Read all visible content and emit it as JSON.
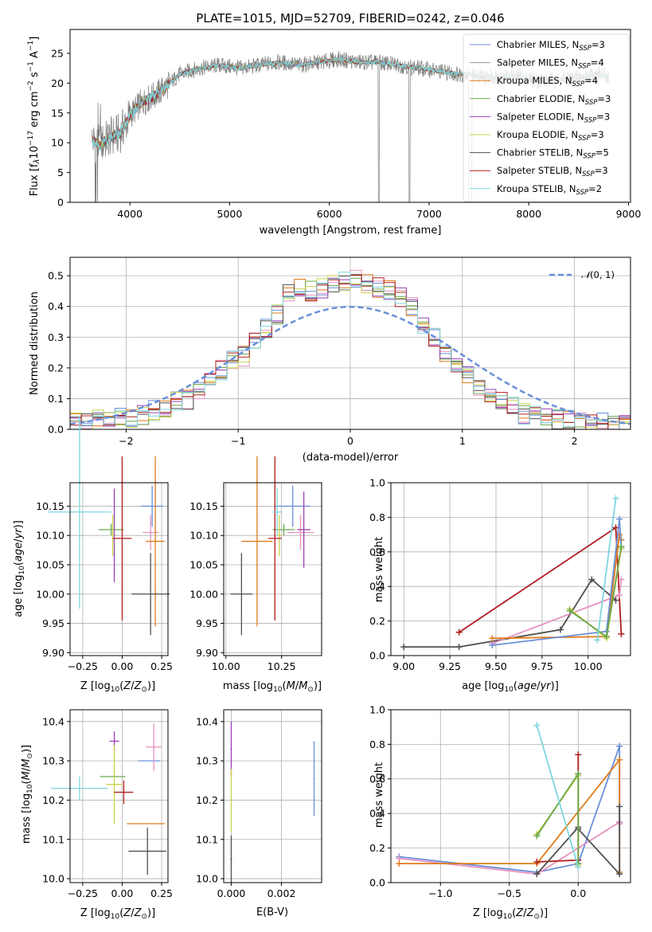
{
  "colors": {
    "Chabrier MILES": "#6a8fd8",
    "Salpeter MILES": "#9a9a9a",
    "Kroupa MILES": "#e07b1a",
    "Chabrier ELODIE": "#6aa84f",
    "Salpeter ELODIE": "#9b3fb5",
    "Kroupa ELODIE": "#c9d34a",
    "Chabrier STELIB": "#505050",
    "Salpeter STELIB": "#b01c1c",
    "Kroupa STELIB": "#7fd6de",
    "pink": "#e890c0",
    "green2": "#88c060",
    "normal": "#6a8fd8"
  },
  "chart_data": [
    {
      "id": "spectrum",
      "type": "line",
      "title": "PLATE=1015, MJD=52709, FIBERID=0242, z=0.046",
      "xlabel": "wavelength [Angstrom, rest frame]",
      "ylabel": "Flux [f_λ10^{-17} erg cm^{-2} s^{-1} A^{-1}]",
      "xlim": [
        3400,
        9020
      ],
      "ylim": [
        0,
        29
      ],
      "xticks": [
        4000,
        5000,
        6000,
        7000,
        8000,
        9000
      ],
      "yticks": [
        0,
        5,
        10,
        15,
        20,
        25
      ],
      "legend_position": "upper right",
      "legend": [
        {
          "model": "Chabrier MILES",
          "nssp": "3"
        },
        {
          "model": "Salpeter MILES",
          "nssp": "4"
        },
        {
          "model": "Kroupa MILES",
          "nssp": "4"
        },
        {
          "model": "Chabrier ELODIE",
          "nssp": "3"
        },
        {
          "model": "Salpeter ELODIE",
          "nssp": "3"
        },
        {
          "model": "Kroupa ELODIE",
          "nssp": "3"
        },
        {
          "model": "Chabrier STELIB",
          "nssp": "5"
        },
        {
          "model": "Salpeter STELIB",
          "nssp": "3"
        },
        {
          "model": "Kroupa STELIB",
          "nssp": "2"
        }
      ],
      "continuum": {
        "x": [
          3620,
          3700,
          3800,
          3900,
          4000,
          4100,
          4200,
          4300,
          4400,
          4500,
          4700,
          4900,
          5100,
          5300,
          5500,
          5700,
          5900,
          6100,
          6300,
          6500,
          6700,
          6900,
          7100,
          7300,
          7420,
          7500,
          7700,
          7900,
          8100,
          8300,
          8500,
          8700,
          8800
        ],
        "y": [
          10.5,
          9.5,
          11.0,
          11.5,
          14.5,
          16.5,
          17.5,
          18.5,
          20.0,
          21.5,
          22.5,
          23.0,
          22.5,
          23.0,
          23.5,
          23.0,
          23.5,
          24.0,
          23.5,
          23.5,
          23.0,
          22.5,
          22.0,
          21.5,
          21.5,
          21.0,
          21.0,
          21.0,
          20.5,
          20.5,
          21.0,
          21.5,
          21.0
        ]
      },
      "gaps": [
        [
          6490,
          6500
        ],
        [
          6800,
          6810
        ],
        [
          7400,
          7430
        ]
      ]
    },
    {
      "id": "residuals",
      "type": "histogram",
      "xlabel": "(data-model)/error",
      "ylabel": "Normed distribution",
      "xlim": [
        -2.5,
        2.5
      ],
      "ylim": [
        0,
        0.56
      ],
      "xticks": [
        -2,
        -1,
        0,
        1,
        2
      ],
      "yticks": [
        0.0,
        0.1,
        0.2,
        0.3,
        0.4,
        0.5
      ],
      "normal_label": "N(0,1)",
      "legend_position": "upper right",
      "bin_edges_start": -2.5,
      "bin_width": 0.1,
      "base_values": [
        0.02,
        0.02,
        0.03,
        0.03,
        0.04,
        0.04,
        0.05,
        0.06,
        0.07,
        0.09,
        0.1,
        0.13,
        0.15,
        0.19,
        0.22,
        0.24,
        0.28,
        0.33,
        0.37,
        0.44,
        0.46,
        0.45,
        0.46,
        0.47,
        0.48,
        0.49,
        0.47,
        0.46,
        0.45,
        0.43,
        0.4,
        0.34,
        0.3,
        0.24,
        0.21,
        0.18,
        0.14,
        0.11,
        0.09,
        0.07,
        0.05,
        0.04,
        0.04,
        0.03,
        0.03,
        0.02,
        0.02,
        0.02,
        0.01,
        0.01
      ]
    },
    {
      "id": "age_vs_Z",
      "type": "errorbar",
      "xlabel": "Z [log10(Z/Z⊙)]",
      "ylabel": "age [log10(age/yr)]",
      "xlim": [
        -0.33,
        0.29
      ],
      "ylim": [
        9.895,
        10.19
      ],
      "xticks": [
        -0.25,
        0.0,
        0.25
      ],
      "xticklabels": [
        "−0.25",
        "0.00",
        "0.25"
      ],
      "yticks": [
        9.9,
        9.95,
        10.0,
        10.05,
        10.1,
        10.15
      ],
      "points": [
        {
          "c": "Chabrier MILES",
          "x": 0.19,
          "xerr": 0.07,
          "y": 10.15,
          "yerr": 0.035
        },
        {
          "c": "pink",
          "x": 0.18,
          "xerr": 0.05,
          "y": 10.105,
          "yerr": 0.03
        },
        {
          "c": "Kroupa MILES",
          "x": 0.21,
          "xerr": 0.06,
          "y": 10.09,
          "yerr": 0.145
        },
        {
          "c": "Chabrier ELODIE",
          "x": -0.07,
          "xerr": 0.08,
          "y": 10.11,
          "yerr": 0.01
        },
        {
          "c": "Salpeter ELODIE",
          "x": -0.05,
          "xerr": 0.0,
          "y": 10.1,
          "yerr": 0.08
        },
        {
          "c": "Kroupa ELODIE",
          "x": -0.06,
          "xerr": 0.01,
          "y": 10.1,
          "yerr": 0.035
        },
        {
          "c": "Chabrier STELIB",
          "x": 0.18,
          "xerr": 0.12,
          "y": 10.0,
          "yerr": 0.07
        },
        {
          "c": "Salpeter STELIB",
          "x": 0.0,
          "xerr": 0.06,
          "y": 10.095,
          "yerr": 0.14
        },
        {
          "c": "Kroupa STELIB",
          "x": -0.27,
          "xerr": 0.2,
          "y": 10.14,
          "yerr": 0.165
        }
      ]
    },
    {
      "id": "age_vs_mass",
      "type": "errorbar",
      "xlabel": "mass [log10(M/M⊙)]",
      "ylabel": "",
      "xlim": [
        9.99,
        10.43
      ],
      "ylim": [
        9.895,
        10.19
      ],
      "xticks": [
        10.0,
        10.25
      ],
      "xticklabels": [
        "10.00",
        "10.25"
      ],
      "yticks": [
        9.9,
        9.95,
        10.0,
        10.05,
        10.1,
        10.15
      ],
      "points": [
        {
          "c": "Chabrier MILES",
          "x": 10.3,
          "xerr": 0.08,
          "y": 10.15,
          "yerr": 0.035
        },
        {
          "c": "pink",
          "x": 10.335,
          "xerr": 0.06,
          "y": 10.105,
          "yerr": 0.03
        },
        {
          "c": "Kroupa MILES",
          "x": 10.14,
          "xerr": 0.07,
          "y": 10.09,
          "yerr": 0.145
        },
        {
          "c": "Chabrier ELODIE",
          "x": 10.26,
          "xerr": 0.05,
          "y": 10.11,
          "yerr": 0.01
        },
        {
          "c": "Salpeter ELODIE",
          "x": 10.35,
          "xerr": 0.03,
          "y": 10.11,
          "yerr": 0.065
        },
        {
          "c": "Kroupa ELODIE",
          "x": 10.24,
          "xerr": 0.01,
          "y": 10.1,
          "yerr": 0.035
        },
        {
          "c": "Chabrier STELIB",
          "x": 10.07,
          "xerr": 0.05,
          "y": 10.0,
          "yerr": 0.07
        },
        {
          "c": "Salpeter STELIB",
          "x": 10.22,
          "xerr": 0.03,
          "y": 10.095,
          "yerr": 0.14
        },
        {
          "c": "Kroupa STELIB",
          "x": 10.23,
          "xerr": 0.02,
          "y": 10.14,
          "yerr": 0.04
        }
      ]
    },
    {
      "id": "mass_vs_Z",
      "type": "errorbar",
      "xlabel": "Z [log10(Z/Z⊙)]",
      "ylabel": "mass [log10(M/M⊙)]",
      "xlim": [
        -0.33,
        0.29
      ],
      "ylim": [
        9.99,
        10.43
      ],
      "xticks": [
        -0.25,
        0.0,
        0.25
      ],
      "xticklabels": [
        "−0.25",
        "0.00",
        "0.25"
      ],
      "yticks": [
        10.0,
        10.1,
        10.2,
        10.3,
        10.4
      ],
      "points": [
        {
          "c": "Chabrier MILES",
          "x": 0.17,
          "xerr": 0.07,
          "y": 10.3,
          "yerr": 0.0
        },
        {
          "c": "pink",
          "x": 0.2,
          "xerr": 0.05,
          "y": 10.335,
          "yerr": 0.06
        },
        {
          "c": "Kroupa MILES",
          "x": 0.15,
          "xerr": 0.12,
          "y": 10.14,
          "yerr": 0.0
        },
        {
          "c": "Chabrier ELODIE",
          "x": -0.06,
          "xerr": 0.08,
          "y": 10.26,
          "yerr": 0.0
        },
        {
          "c": "Salpeter ELODIE",
          "x": -0.05,
          "xerr": 0.03,
          "y": 10.35,
          "yerr": 0.025
        },
        {
          "c": "Kroupa ELODIE",
          "x": -0.05,
          "xerr": 0.05,
          "y": 10.24,
          "yerr": 0.1
        },
        {
          "c": "Chabrier STELIB",
          "x": 0.16,
          "xerr": 0.12,
          "y": 10.07,
          "yerr": 0.06
        },
        {
          "c": "Salpeter STELIB",
          "x": 0.01,
          "xerr": 0.06,
          "y": 10.22,
          "yerr": 0.03
        },
        {
          "c": "Kroupa STELIB",
          "x": -0.27,
          "xerr": 0.18,
          "y": 10.23,
          "yerr": 0.03
        }
      ]
    },
    {
      "id": "mass_vs_ebv",
      "type": "errorbar",
      "xlabel": "E(B-V)",
      "ylabel": "",
      "xlim": [
        -0.0003,
        0.0036
      ],
      "ylim": [
        9.99,
        10.43
      ],
      "xticks": [
        0.0,
        0.002
      ],
      "xticklabels": [
        "0.000",
        "0.002"
      ],
      "yticks": [
        10.0,
        10.1,
        10.2,
        10.3,
        10.4
      ],
      "points": [
        {
          "c": "Salpeter ELODIE",
          "x": 0.0,
          "xerr": 0.0,
          "y": 10.33,
          "yerr": 0.07
        },
        {
          "c": "Kroupa ELODIE",
          "x": 0.0,
          "xerr": 0.0,
          "y": 10.2,
          "yerr": 0.08
        },
        {
          "c": "Chabrier STELIB",
          "x": 0.0,
          "xerr": 0.0,
          "y": 10.05,
          "yerr": 0.06
        },
        {
          "c": "Chabrier MILES",
          "x": 0.0033,
          "xerr": 0.0,
          "y": 10.255,
          "yerr": 0.095
        }
      ]
    },
    {
      "id": "weight_vs_age",
      "type": "line",
      "xlabel": "age [log10(age/yr)]",
      "ylabel": "mass weight",
      "xlim": [
        8.93,
        10.23
      ],
      "ylim": [
        0.0,
        1.0
      ],
      "xticks": [
        9.0,
        9.25,
        9.5,
        9.75,
        10.0
      ],
      "xticklabels": [
        "9.00",
        "9.25",
        "9.50",
        "9.75",
        "10.00"
      ],
      "yticks": [
        0.0,
        0.2,
        0.4,
        0.6,
        0.8,
        1.0
      ],
      "series": [
        {
          "c": "Chabrier STELIB",
          "x": [
            9.0,
            9.3,
            9.85,
            10.02,
            10.15
          ],
          "y": [
            0.05,
            0.05,
            0.15,
            0.44,
            0.32
          ]
        },
        {
          "c": "Salpeter STELIB",
          "x": [
            9.3,
            10.15,
            10.18
          ],
          "y": [
            0.135,
            0.74,
            0.125
          ]
        },
        {
          "c": "pink",
          "x": [
            9.48,
            10.17,
            10.18
          ],
          "y": [
            0.07,
            0.35,
            0.44
          ]
        },
        {
          "c": "Kroupa MILES",
          "x": [
            9.48,
            10.1,
            10.17,
            10.18
          ],
          "y": [
            0.1,
            0.11,
            0.7,
            0.67
          ]
        },
        {
          "c": "Chabrier MILES",
          "x": [
            9.48,
            10.1,
            10.17,
            10.18
          ],
          "y": [
            0.06,
            0.14,
            0.79,
            0.62
          ]
        },
        {
          "c": "Kroupa ELODIE",
          "x": [
            9.9,
            10.1,
            10.18
          ],
          "y": [
            0.27,
            0.1,
            0.62
          ]
        },
        {
          "c": "Chabrier ELODIE",
          "x": [
            9.9,
            10.1,
            10.18
          ],
          "y": [
            0.26,
            0.11,
            0.63
          ]
        },
        {
          "c": "Kroupa STELIB",
          "x": [
            10.05,
            10.15
          ],
          "y": [
            0.09,
            0.91
          ]
        }
      ]
    },
    {
      "id": "weight_vs_Z",
      "type": "line",
      "xlabel": "Z [log10(Z/Z⊙)]",
      "ylabel": "mass weight",
      "xlim": [
        -1.36,
        0.38
      ],
      "ylim": [
        0.0,
        1.0
      ],
      "xticks": [
        -1.0,
        -0.5,
        0.0
      ],
      "xticklabels": [
        "−1.0",
        "−0.5",
        "0.0"
      ],
      "yticks": [
        0.0,
        0.2,
        0.4,
        0.6,
        0.8,
        1.0
      ],
      "series": [
        {
          "c": "Chabrier MILES",
          "x": [
            -1.3,
            -0.3,
            0.0,
            0.3,
            0.3
          ],
          "y": [
            0.15,
            0.06,
            0.11,
            0.79,
            0.35
          ]
        },
        {
          "c": "pink",
          "x": [
            -1.3,
            -0.3,
            0.3,
            0.3
          ],
          "y": [
            0.14,
            0.05,
            0.35,
            0.34
          ]
        },
        {
          "c": "Kroupa MILES",
          "x": [
            -1.3,
            -0.3,
            0.3,
            0.3
          ],
          "y": [
            0.11,
            0.11,
            0.71,
            0.06
          ]
        },
        {
          "c": "Salpeter STELIB",
          "x": [
            -0.3,
            0.0,
            0.0,
            0.0
          ],
          "y": [
            0.12,
            0.13,
            0.74,
            0.13
          ]
        },
        {
          "c": "Chabrier STELIB",
          "x": [
            -0.3,
            0.0,
            0.0,
            0.3,
            0.3
          ],
          "y": [
            0.05,
            0.32,
            0.31,
            0.05,
            0.44
          ]
        },
        {
          "c": "Kroupa ELODIE",
          "x": [
            -0.3,
            0.0,
            0.0
          ],
          "y": [
            0.28,
            0.62,
            0.1
          ]
        },
        {
          "c": "Chabrier ELODIE",
          "x": [
            -0.3,
            0.0,
            0.0
          ],
          "y": [
            0.27,
            0.63,
            0.11
          ]
        },
        {
          "c": "Kroupa STELIB",
          "x": [
            -0.3,
            0.0
          ],
          "y": [
            0.91,
            0.09
          ]
        }
      ]
    }
  ]
}
